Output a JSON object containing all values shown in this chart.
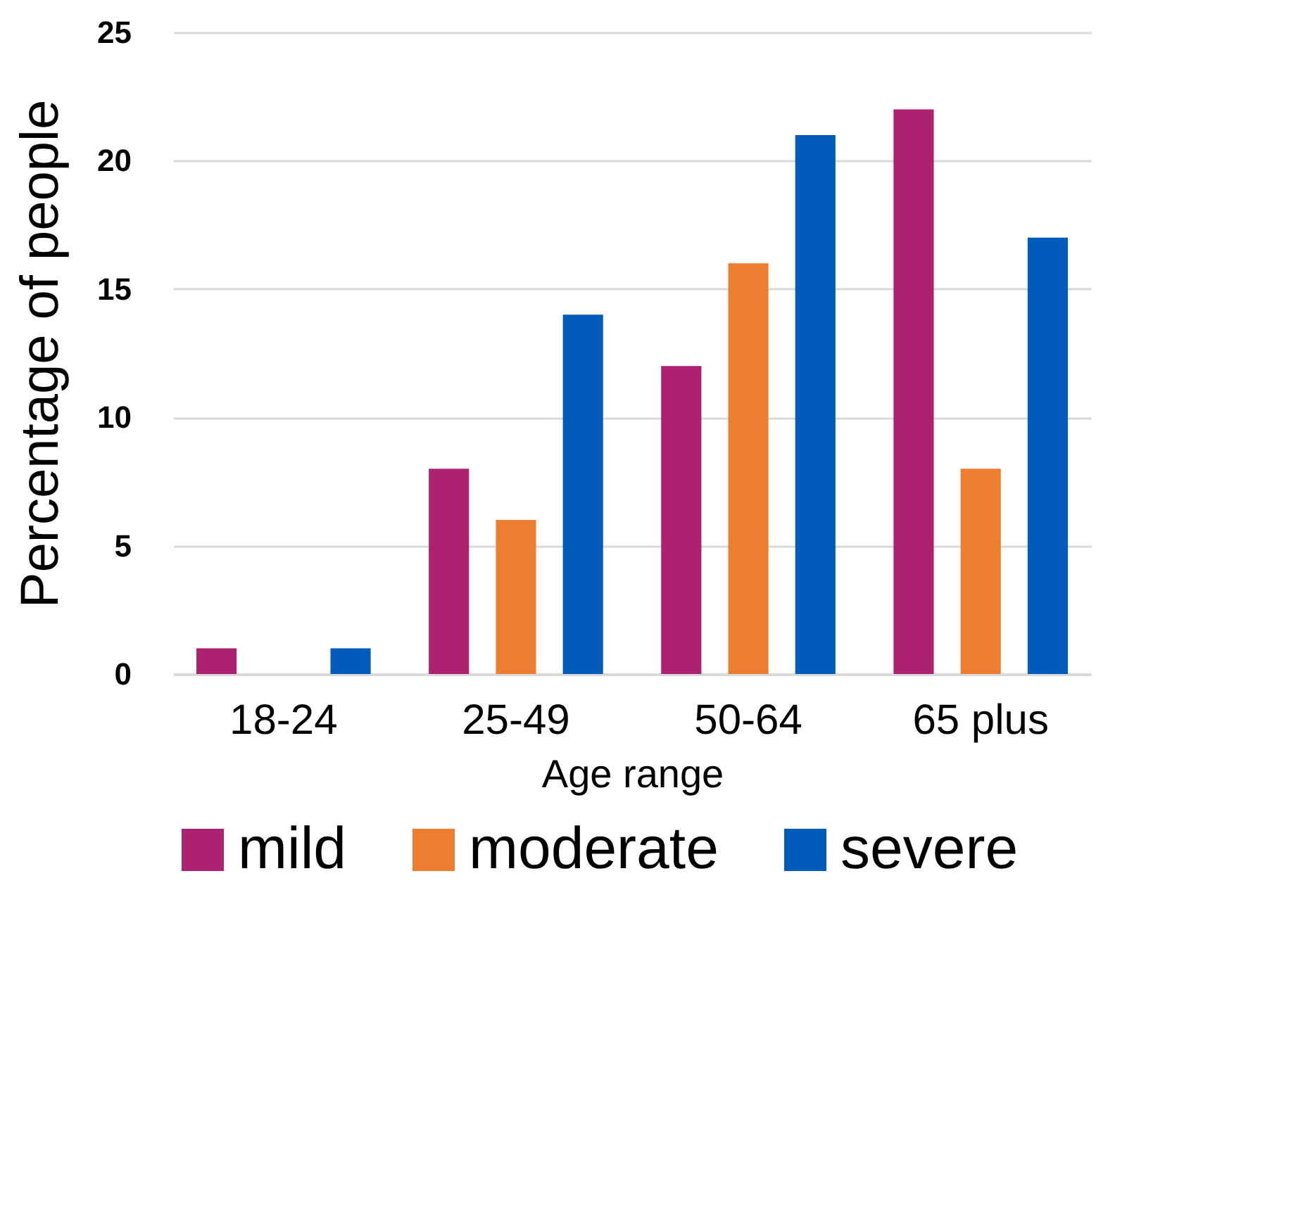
{
  "chart_data": {
    "type": "bar",
    "xlabel": "Age range",
    "ylabel": "Percentage of people",
    "categories": [
      "18-24",
      "25-49",
      "50-64",
      "65  plus"
    ],
    "series": [
      {
        "name": "mild",
        "color": "#ad2270",
        "values": [
          1,
          8,
          12,
          22
        ]
      },
      {
        "name": "moderate",
        "color": "#ed7d31",
        "values": [
          0,
          6,
          16,
          8
        ]
      },
      {
        "name": "severe",
        "color": "#005bbb",
        "values": [
          1,
          14,
          21,
          17
        ]
      }
    ],
    "ylim": [
      0,
      25
    ],
    "yticks": [
      0,
      5,
      10,
      15,
      20,
      25
    ],
    "grid": "y",
    "legend": "bottom"
  }
}
